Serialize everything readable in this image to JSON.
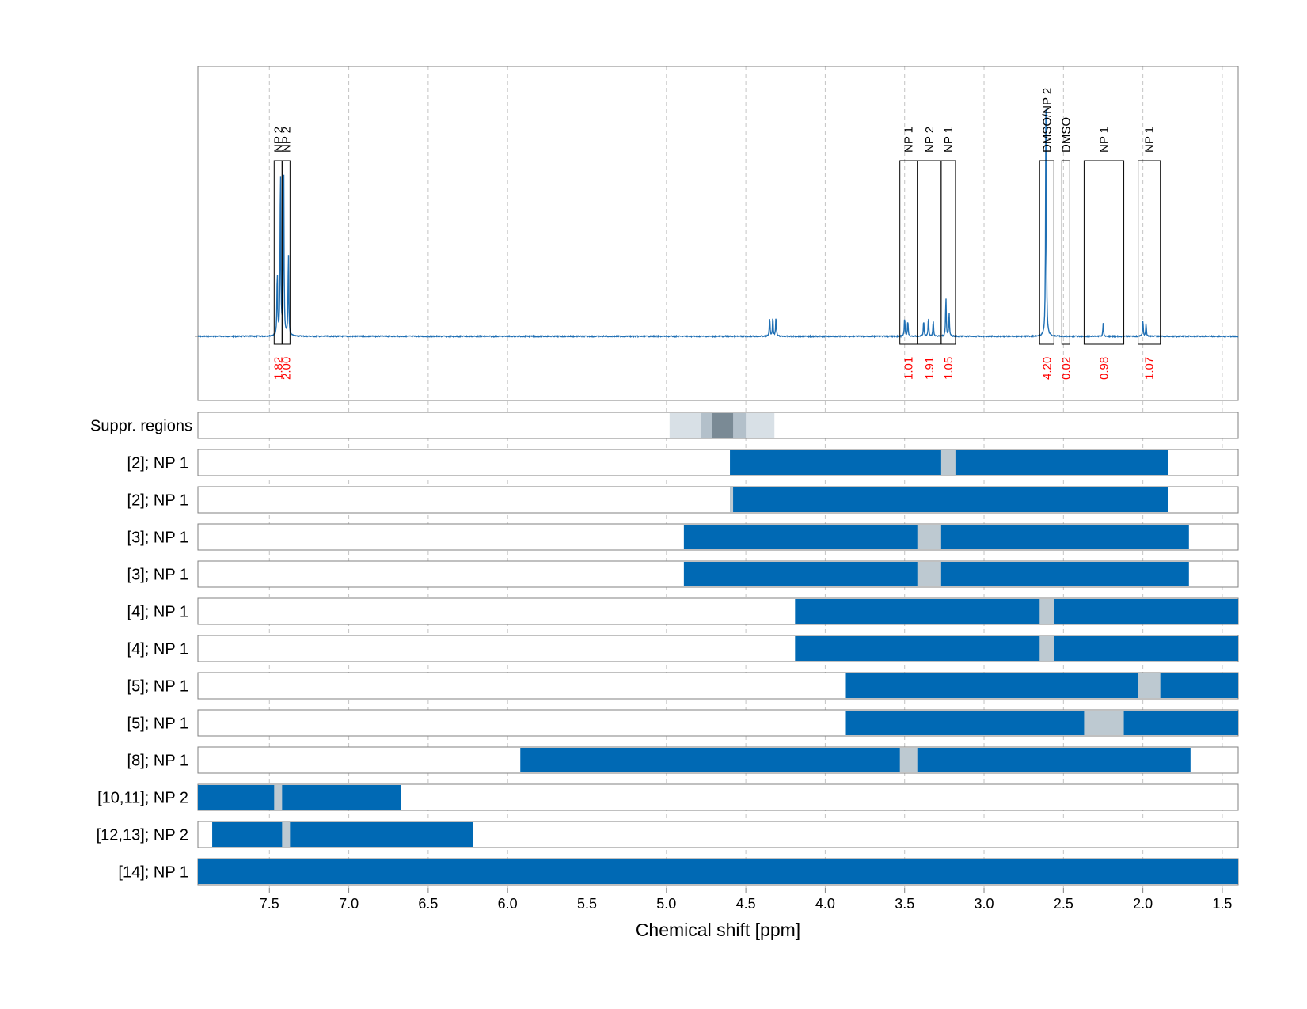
{
  "chart_data": {
    "type": "nmr-spectrum-with-region-tracks",
    "xlabel": "Chemical shift [ppm]",
    "x_reversed": true,
    "xlim": [
      7.95,
      1.4
    ],
    "x_ticks": [
      "7.5",
      "7.0",
      "6.5",
      "6.0",
      "5.5",
      "5.0",
      "4.5",
      "4.0",
      "3.5",
      "3.0",
      "2.5",
      "2.0",
      "1.5"
    ],
    "grid": "dashed vertical",
    "colors": {
      "spectrum": "#1f6fb4",
      "region_fill": "#0069b4",
      "gap_fill": "#bdc9d1",
      "integral_text": "#ff0000",
      "suppr_light": "#d8e0e6",
      "suppr_mid": "#b3c0ca",
      "suppr_dark": "#7a8a95"
    },
    "peaks": [
      {
        "center": 7.43,
        "height": 0.53
      },
      {
        "center": 7.41,
        "height": 0.53
      },
      {
        "center": 7.38,
        "height": 0.26
      },
      {
        "center": 7.45,
        "height": 0.2
      },
      {
        "center": 4.35,
        "height": 0.06
      },
      {
        "center": 4.33,
        "height": 0.06
      },
      {
        "center": 4.31,
        "height": 0.06
      },
      {
        "center": 3.5,
        "height": 0.06
      },
      {
        "center": 3.48,
        "height": 0.05
      },
      {
        "center": 3.38,
        "height": 0.05
      },
      {
        "center": 3.35,
        "height": 0.06
      },
      {
        "center": 3.32,
        "height": 0.05
      },
      {
        "center": 3.24,
        "height": 0.12
      },
      {
        "center": 3.22,
        "height": 0.07
      },
      {
        "center": 2.61,
        "height": 0.84
      },
      {
        "center": 2.25,
        "height": 0.04
      },
      {
        "center": 2.0,
        "height": 0.05
      },
      {
        "center": 1.98,
        "height": 0.04
      }
    ],
    "annotations": [
      {
        "label": "NP 2",
        "from": 7.47,
        "to": 7.42,
        "integral": "1.82"
      },
      {
        "label": "NP 2",
        "from": 7.42,
        "to": 7.37,
        "integral": "2.00"
      },
      {
        "label": "NP 1",
        "from": 3.53,
        "to": 3.42,
        "integral": "1.01"
      },
      {
        "label": "NP 2",
        "from": 3.42,
        "to": 3.27,
        "integral": "1.91"
      },
      {
        "label": "NP 1",
        "from": 3.27,
        "to": 3.18,
        "integral": "1.05"
      },
      {
        "label": "DMSO/NP 2",
        "from": 2.65,
        "to": 2.56,
        "integral": "4.20"
      },
      {
        "label": "DMSO",
        "from": 2.51,
        "to": 2.46,
        "integral": "0.02"
      },
      {
        "label": "NP 1",
        "from": 2.37,
        "to": 2.12,
        "integral": "0.98"
      },
      {
        "label": "NP 1",
        "from": 2.03,
        "to": 1.89,
        "integral": "1.07"
      }
    ],
    "suppressed_regions": {
      "label": "Suppr. regions",
      "bands": [
        {
          "from": 4.98,
          "to": 4.32,
          "shade": "light"
        },
        {
          "from": 4.78,
          "to": 4.5,
          "shade": "mid"
        },
        {
          "from": 4.71,
          "to": 4.58,
          "shade": "dark"
        }
      ]
    },
    "tracks": [
      {
        "label": "[2]; NP 1",
        "from": 4.6,
        "to": 1.84,
        "gaps": [
          [
            3.27,
            3.18
          ]
        ]
      },
      {
        "label": "[2]; NP 1",
        "from": 4.6,
        "to": 1.84,
        "gaps": [
          [
            4.6,
            4.58
          ]
        ]
      },
      {
        "label": "[3]; NP 1",
        "from": 4.89,
        "to": 1.71,
        "gaps": [
          [
            3.42,
            3.27
          ]
        ]
      },
      {
        "label": "[3]; NP 1",
        "from": 4.89,
        "to": 1.71,
        "gaps": [
          [
            3.42,
            3.27
          ]
        ]
      },
      {
        "label": "[4]; NP 1",
        "from": 4.19,
        "to": 1.4,
        "gaps": [
          [
            2.65,
            2.56
          ]
        ]
      },
      {
        "label": "[4]; NP 1",
        "from": 4.19,
        "to": 1.4,
        "gaps": [
          [
            2.65,
            2.56
          ]
        ]
      },
      {
        "label": "[5]; NP 1",
        "from": 3.87,
        "to": 1.4,
        "gaps": [
          [
            2.03,
            1.89
          ]
        ]
      },
      {
        "label": "[5]; NP 1",
        "from": 3.87,
        "to": 1.4,
        "gaps": [
          [
            2.37,
            2.12
          ]
        ]
      },
      {
        "label": "[8]; NP 1",
        "from": 5.92,
        "to": 1.7,
        "gaps": [
          [
            3.53,
            3.42
          ]
        ]
      },
      {
        "label": "[10,11]; NP 2",
        "from": 7.95,
        "to": 6.67,
        "gaps": [
          [
            7.47,
            7.42
          ]
        ]
      },
      {
        "label": "[12,13]; NP 2",
        "from": 7.86,
        "to": 6.22,
        "gaps": [
          [
            7.42,
            7.37
          ]
        ]
      },
      {
        "label": "[14]; NP 1",
        "from": 7.95,
        "to": 1.4,
        "gaps": []
      }
    ]
  }
}
